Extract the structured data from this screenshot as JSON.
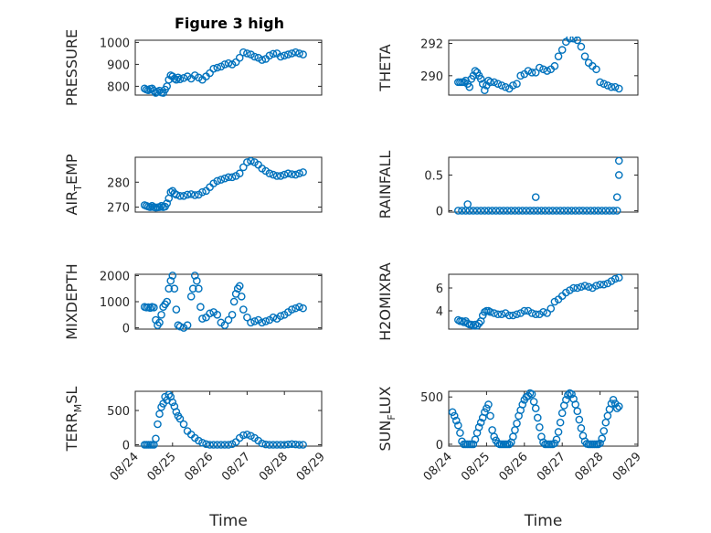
{
  "figure": {
    "title": "Figure 3 high",
    "colors": {
      "marker": "#0072BD",
      "axes": "#262626",
      "grid": "#c8c8c8"
    }
  },
  "chart_data": [
    {
      "type": "scatter",
      "ylabel": "PRESSURE",
      "xlim": [
        0,
        5
      ],
      "ylim": [
        760,
        1010
      ],
      "yticks": [
        800,
        900,
        1000
      ],
      "xticks": [],
      "xticklabels": [],
      "xlabel": "",
      "x": [
        0.25,
        0.3,
        0.35,
        0.4,
        0.45,
        0.5,
        0.55,
        0.6,
        0.65,
        0.7,
        0.75,
        0.8,
        0.85,
        0.9,
        0.95,
        1.0,
        1.05,
        1.1,
        1.15,
        1.2,
        1.3,
        1.4,
        1.5,
        1.6,
        1.7,
        1.8,
        1.9,
        2.0,
        2.1,
        2.2,
        2.3,
        2.4,
        2.5,
        2.6,
        2.7,
        2.8,
        2.9,
        3.0,
        3.1,
        3.2,
        3.3,
        3.4,
        3.5,
        3.6,
        3.7,
        3.8,
        3.9,
        4.0,
        4.1,
        4.2,
        4.3,
        4.4,
        4.5
      ],
      "y": [
        790,
        785,
        782,
        788,
        790,
        780,
        770,
        775,
        780,
        772,
        770,
        785,
        800,
        830,
        850,
        845,
        835,
        830,
        840,
        832,
        838,
        845,
        835,
        850,
        840,
        830,
        845,
        860,
        880,
        885,
        890,
        900,
        905,
        900,
        910,
        930,
        955,
        950,
        945,
        935,
        930,
        920,
        925,
        940,
        948,
        950,
        935,
        940,
        945,
        950,
        955,
        950,
        945
      ]
    },
    {
      "type": "scatter",
      "ylabel": "THETA",
      "xlim": [
        0,
        5
      ],
      "ylim": [
        288.8,
        292.2
      ],
      "yticks": [
        290,
        292
      ],
      "xticks": [],
      "xticklabels": [],
      "xlabel": "",
      "x": [
        0.25,
        0.3,
        0.35,
        0.4,
        0.45,
        0.5,
        0.55,
        0.6,
        0.65,
        0.7,
        0.75,
        0.8,
        0.85,
        0.9,
        0.95,
        1.0,
        1.05,
        1.1,
        1.2,
        1.3,
        1.4,
        1.5,
        1.6,
        1.7,
        1.8,
        1.9,
        2.0,
        2.1,
        2.2,
        2.3,
        2.4,
        2.5,
        2.6,
        2.7,
        2.8,
        2.9,
        3.0,
        3.1,
        3.2,
        3.3,
        3.4,
        3.5,
        3.6,
        3.7,
        3.8,
        3.9,
        4.0,
        4.1,
        4.2,
        4.3,
        4.4,
        4.5
      ],
      "y": [
        289.6,
        289.6,
        289.6,
        289.6,
        289.7,
        289.5,
        289.3,
        289.8,
        290.0,
        290.3,
        290.2,
        290.0,
        289.8,
        289.5,
        289.1,
        289.4,
        289.7,
        289.6,
        289.6,
        289.5,
        289.4,
        289.3,
        289.2,
        289.4,
        289.5,
        290.0,
        290.1,
        290.3,
        290.2,
        290.2,
        290.5,
        290.4,
        290.3,
        290.4,
        290.6,
        291.2,
        291.6,
        292.1,
        292.3,
        292.3,
        292.2,
        291.8,
        291.2,
        290.8,
        290.6,
        290.4,
        289.6,
        289.5,
        289.4,
        289.3,
        289.3,
        289.2
      ]
    },
    {
      "type": "scatter",
      "ylabel": "AIR_TEMP",
      "xlim": [
        0,
        5
      ],
      "ylim": [
        268,
        290
      ],
      "yticks": [
        270,
        280
      ],
      "xticks": [],
      "xticklabels": [],
      "xlabel": "",
      "x": [
        0.25,
        0.3,
        0.35,
        0.4,
        0.45,
        0.5,
        0.55,
        0.6,
        0.65,
        0.7,
        0.75,
        0.8,
        0.85,
        0.9,
        0.95,
        1.0,
        1.05,
        1.1,
        1.2,
        1.3,
        1.4,
        1.5,
        1.6,
        1.7,
        1.8,
        1.9,
        2.0,
        2.1,
        2.2,
        2.3,
        2.4,
        2.5,
        2.6,
        2.7,
        2.8,
        2.9,
        3.0,
        3.1,
        3.2,
        3.3,
        3.4,
        3.5,
        3.6,
        3.7,
        3.8,
        3.9,
        4.0,
        4.1,
        4.2,
        4.3,
        4.4,
        4.5
      ],
      "y": [
        270.8,
        270.5,
        270.2,
        270.0,
        270.5,
        270.0,
        269.8,
        269.9,
        270.0,
        270.5,
        270.0,
        270.2,
        271.5,
        273.5,
        276.0,
        276.5,
        275.5,
        275.0,
        274.5,
        274.5,
        275.0,
        275.2,
        274.8,
        275.0,
        276.0,
        276.5,
        278.0,
        279.5,
        280.5,
        281.0,
        281.5,
        282.0,
        282.0,
        282.5,
        283.5,
        286.0,
        288.0,
        288.5,
        288.0,
        287.0,
        285.5,
        284.5,
        283.5,
        283.0,
        282.5,
        282.5,
        283.0,
        283.5,
        283.2,
        283.0,
        283.5,
        284.0
      ]
    },
    {
      "type": "scatter",
      "ylabel": "RAINFALL",
      "xlim": [
        0,
        5
      ],
      "ylim": [
        -0.02,
        0.75
      ],
      "yticks": [
        0,
        0.5
      ],
      "xticks": [],
      "xticklabels": [],
      "xlabel": "",
      "x": [
        0.25,
        0.35,
        0.45,
        0.55,
        0.65,
        0.75,
        0.85,
        0.95,
        1.05,
        1.15,
        1.25,
        1.35,
        1.45,
        1.55,
        1.65,
        1.75,
        1.85,
        1.95,
        2.05,
        2.15,
        2.25,
        2.35,
        2.45,
        2.55,
        2.65,
        2.75,
        2.85,
        2.95,
        3.05,
        3.15,
        3.25,
        3.35,
        3.45,
        3.55,
        3.65,
        3.75,
        3.85,
        3.95,
        4.05,
        4.15,
        4.25,
        4.35,
        4.45,
        0.5,
        2.3,
        4.45,
        4.5,
        4.5
      ],
      "y": [
        0,
        0,
        0,
        0,
        0,
        0,
        0,
        0,
        0,
        0,
        0,
        0,
        0,
        0,
        0,
        0,
        0,
        0,
        0,
        0,
        0,
        0,
        0,
        0,
        0,
        0,
        0,
        0,
        0,
        0,
        0,
        0,
        0,
        0,
        0,
        0,
        0,
        0,
        0,
        0,
        0,
        0,
        0,
        0.09,
        0.19,
        0.19,
        0.5,
        0.7
      ]
    },
    {
      "type": "scatter",
      "ylabel": "MIXDEPTH",
      "xlim": [
        0,
        5
      ],
      "ylim": [
        -50,
        2050
      ],
      "yticks": [
        0,
        1000,
        2000
      ],
      "xticks": [],
      "xticklabels": [],
      "xlabel": "",
      "x": [
        0.25,
        0.3,
        0.35,
        0.4,
        0.45,
        0.5,
        0.55,
        0.6,
        0.65,
        0.7,
        0.75,
        0.8,
        0.85,
        0.9,
        0.95,
        1.0,
        1.05,
        1.1,
        1.15,
        1.2,
        1.3,
        1.4,
        1.5,
        1.55,
        1.6,
        1.65,
        1.7,
        1.75,
        1.8,
        1.9,
        2.0,
        2.1,
        2.2,
        2.3,
        2.4,
        2.5,
        2.6,
        2.65,
        2.7,
        2.75,
        2.8,
        2.85,
        2.9,
        3.0,
        3.1,
        3.2,
        3.3,
        3.4,
        3.5,
        3.6,
        3.7,
        3.8,
        3.9,
        4.0,
        4.1,
        4.2,
        4.3,
        4.4,
        4.5
      ],
      "y": [
        800,
        780,
        790,
        760,
        800,
        780,
        300,
        100,
        200,
        500,
        800,
        900,
        1000,
        1500,
        1800,
        2000,
        1500,
        700,
        100,
        50,
        0,
        100,
        1200,
        1500,
        2000,
        1800,
        1500,
        800,
        350,
        400,
        550,
        600,
        500,
        200,
        100,
        300,
        500,
        1000,
        1300,
        1500,
        1600,
        1200,
        700,
        400,
        200,
        250,
        300,
        200,
        250,
        300,
        400,
        350,
        450,
        500,
        600,
        700,
        750,
        800,
        750
      ]
    },
    {
      "type": "scatter",
      "ylabel": "H2OMIXRA",
      "xlim": [
        0,
        5
      ],
      "ylim": [
        2.4,
        7.2
      ],
      "yticks": [
        4,
        6
      ],
      "xticks": [],
      "xticklabels": [],
      "xlabel": "",
      "x": [
        0.25,
        0.3,
        0.35,
        0.4,
        0.45,
        0.5,
        0.55,
        0.6,
        0.65,
        0.7,
        0.75,
        0.8,
        0.85,
        0.9,
        0.95,
        1.0,
        1.05,
        1.1,
        1.2,
        1.3,
        1.4,
        1.5,
        1.6,
        1.7,
        1.8,
        1.9,
        2.0,
        2.1,
        2.2,
        2.3,
        2.4,
        2.5,
        2.6,
        2.7,
        2.8,
        2.9,
        3.0,
        3.1,
        3.2,
        3.3,
        3.4,
        3.5,
        3.6,
        3.7,
        3.8,
        3.9,
        4.0,
        4.1,
        4.2,
        4.3,
        4.4,
        4.5
      ],
      "y": [
        3.2,
        3.1,
        3.1,
        3.0,
        3.1,
        2.9,
        2.8,
        2.8,
        2.7,
        2.8,
        2.7,
        2.9,
        3.1,
        3.6,
        3.9,
        4.0,
        4.0,
        3.9,
        3.8,
        3.7,
        3.7,
        3.8,
        3.6,
        3.6,
        3.7,
        3.8,
        4.0,
        4.0,
        3.8,
        3.7,
        3.7,
        3.9,
        3.8,
        4.2,
        4.8,
        5.0,
        5.3,
        5.6,
        5.8,
        6.0,
        6.0,
        6.1,
        6.2,
        6.1,
        6.0,
        6.2,
        6.3,
        6.3,
        6.4,
        6.6,
        6.8,
        6.9
      ]
    },
    {
      "type": "scatter",
      "ylabel": "TERR_MSL",
      "xlim": [
        0,
        5
      ],
      "ylim": [
        -20,
        780
      ],
      "yticks": [
        0,
        500
      ],
      "xticks": [
        0,
        1,
        2,
        3,
        4,
        5
      ],
      "xticklabels": [
        "08/24",
        "08/25",
        "08/26",
        "08/27",
        "08/28",
        "08/29"
      ],
      "xlabel": "Time",
      "x": [
        0.25,
        0.3,
        0.35,
        0.4,
        0.45,
        0.5,
        0.55,
        0.6,
        0.65,
        0.7,
        0.75,
        0.8,
        0.85,
        0.9,
        0.95,
        1.0,
        1.05,
        1.1,
        1.15,
        1.2,
        1.3,
        1.4,
        1.5,
        1.6,
        1.7,
        1.8,
        1.9,
        2.0,
        2.1,
        2.2,
        2.3,
        2.4,
        2.5,
        2.6,
        2.7,
        2.8,
        2.9,
        3.0,
        3.1,
        3.2,
        3.3,
        3.4,
        3.5,
        3.6,
        3.7,
        3.8,
        3.9,
        4.0,
        4.1,
        4.2,
        4.3,
        4.4,
        4.5
      ],
      "y": [
        0,
        0,
        0,
        0,
        0,
        0,
        90,
        300,
        450,
        550,
        600,
        700,
        650,
        730,
        700,
        620,
        560,
        480,
        420,
        380,
        300,
        200,
        150,
        100,
        60,
        30,
        10,
        0,
        0,
        0,
        0,
        0,
        0,
        10,
        40,
        100,
        140,
        150,
        130,
        100,
        60,
        20,
        5,
        0,
        0,
        0,
        0,
        0,
        5,
        10,
        5,
        0,
        0
      ]
    },
    {
      "type": "scatter",
      "ylabel": "SUN_FLUX",
      "xlim": [
        0,
        5
      ],
      "ylim": [
        -20,
        560
      ],
      "yticks": [
        0,
        500
      ],
      "xticks": [
        0,
        1,
        2,
        3,
        4,
        5
      ],
      "xticklabels": [
        "08/24",
        "08/25",
        "08/26",
        "08/27",
        "08/28",
        "08/29"
      ],
      "xlabel": "Time",
      "x": [
        0.1,
        0.15,
        0.2,
        0.25,
        0.3,
        0.35,
        0.4,
        0.45,
        0.5,
        0.55,
        0.6,
        0.65,
        0.7,
        0.75,
        0.8,
        0.85,
        0.9,
        0.95,
        1.0,
        1.05,
        1.1,
        1.15,
        1.2,
        1.25,
        1.3,
        1.35,
        1.4,
        1.45,
        1.5,
        1.55,
        1.6,
        1.65,
        1.7,
        1.75,
        1.8,
        1.85,
        1.9,
        1.95,
        2.0,
        2.05,
        2.1,
        2.15,
        2.2,
        2.25,
        2.3,
        2.35,
        2.4,
        2.45,
        2.5,
        2.55,
        2.6,
        2.65,
        2.7,
        2.75,
        2.8,
        2.85,
        2.9,
        2.95,
        3.0,
        3.05,
        3.1,
        3.15,
        3.2,
        3.25,
        3.3,
        3.35,
        3.4,
        3.45,
        3.5,
        3.55,
        3.6,
        3.65,
        3.7,
        3.75,
        3.8,
        3.85,
        3.9,
        3.95,
        4.0,
        4.05,
        4.1,
        4.15,
        4.2,
        4.25,
        4.3,
        4.35,
        4.4,
        4.45,
        4.5
      ],
      "y": [
        340,
        300,
        250,
        200,
        120,
        30,
        0,
        0,
        0,
        0,
        0,
        0,
        50,
        120,
        180,
        230,
        280,
        340,
        380,
        420,
        300,
        150,
        80,
        40,
        10,
        0,
        0,
        0,
        0,
        0,
        0,
        20,
        80,
        150,
        220,
        300,
        360,
        420,
        470,
        500,
        510,
        540,
        530,
        450,
        380,
        280,
        180,
        80,
        20,
        0,
        0,
        0,
        0,
        0,
        10,
        50,
        130,
        230,
        330,
        410,
        470,
        520,
        540,
        530,
        480,
        420,
        350,
        260,
        170,
        90,
        30,
        5,
        0,
        0,
        0,
        0,
        0,
        0,
        10,
        60,
        140,
        230,
        300,
        370,
        430,
        470,
        430,
        380,
        400
      ]
    }
  ]
}
